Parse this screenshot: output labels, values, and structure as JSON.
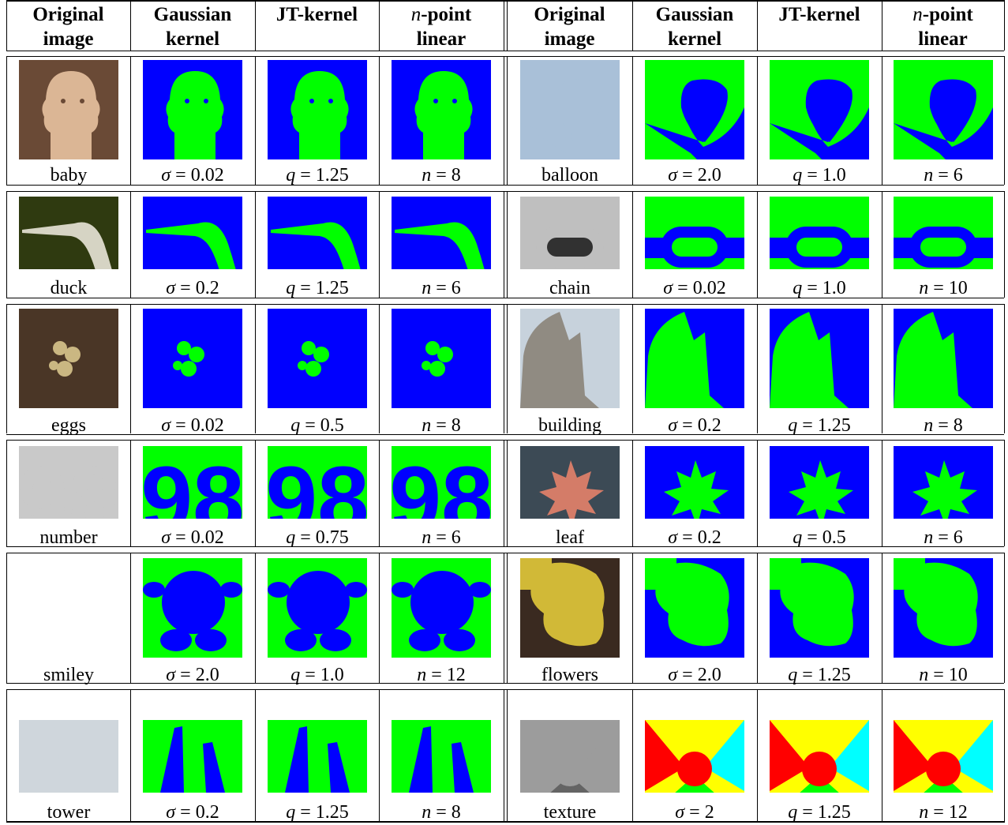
{
  "columns": [
    {
      "line1": "Original",
      "line2": "image"
    },
    {
      "line1": "Gaussian",
      "line2": "kernel"
    },
    {
      "line1": "JT-kernel",
      "line2": ""
    },
    {
      "prefix": "n",
      "line1": "-point",
      "line2": "linear"
    },
    {
      "line1": "Original",
      "line2": "image"
    },
    {
      "line1": "Gaussian",
      "line2": "kernel"
    },
    {
      "line1": "JT-kernel",
      "line2": ""
    },
    {
      "prefix": "n",
      "line1": "-point",
      "line2": "linear"
    }
  ],
  "rows": [
    {
      "left": {
        "name": "baby",
        "gaussian": {
          "var": "σ",
          "value": "0.02"
        },
        "jt": {
          "var": "q",
          "value": "1.25"
        },
        "npoint": {
          "var": "n",
          "value": "8"
        }
      },
      "right": {
        "name": "balloon",
        "gaussian": {
          "var": "σ",
          "value": "2.0"
        },
        "jt": {
          "var": "q",
          "value": "1.0"
        },
        "npoint": {
          "var": "n",
          "value": "6"
        }
      }
    },
    {
      "left": {
        "name": "duck",
        "gaussian": {
          "var": "σ",
          "value": "0.2"
        },
        "jt": {
          "var": "q",
          "value": "1.25"
        },
        "npoint": {
          "var": "n",
          "value": "6"
        }
      },
      "right": {
        "name": "chain",
        "gaussian": {
          "var": "σ",
          "value": "0.02"
        },
        "jt": {
          "var": "q",
          "value": "1.0"
        },
        "npoint": {
          "var": "n",
          "value": "10"
        }
      }
    },
    {
      "left": {
        "name": "eggs",
        "gaussian": {
          "var": "σ",
          "value": "0.02"
        },
        "jt": {
          "var": "q",
          "value": "0.5"
        },
        "npoint": {
          "var": "n",
          "value": "8"
        }
      },
      "right": {
        "name": "building",
        "gaussian": {
          "var": "σ",
          "value": "0.2"
        },
        "jt": {
          "var": "q",
          "value": "1.25"
        },
        "npoint": {
          "var": "n",
          "value": "8"
        }
      }
    },
    {
      "left": {
        "name": "number",
        "gaussian": {
          "var": "σ",
          "value": "0.02"
        },
        "jt": {
          "var": "q",
          "value": "0.75"
        },
        "npoint": {
          "var": "n",
          "value": "6"
        }
      },
      "right": {
        "name": "leaf",
        "gaussian": {
          "var": "σ",
          "value": "0.2"
        },
        "jt": {
          "var": "q",
          "value": "0.5"
        },
        "npoint": {
          "var": "n",
          "value": "6"
        }
      }
    },
    {
      "left": {
        "name": "smiley",
        "gaussian": {
          "var": "σ",
          "value": "2.0"
        },
        "jt": {
          "var": "q",
          "value": "1.0"
        },
        "npoint": {
          "var": "n",
          "value": "12"
        }
      },
      "right": {
        "name": "flowers",
        "gaussian": {
          "var": "σ",
          "value": "2.0"
        },
        "jt": {
          "var": "q",
          "value": "1.25"
        },
        "npoint": {
          "var": "n",
          "value": "10"
        }
      }
    },
    {
      "left": {
        "name": "tower",
        "gaussian": {
          "var": "σ",
          "value": "0.2"
        },
        "jt": {
          "var": "q",
          "value": "1.25"
        },
        "npoint": {
          "var": "n",
          "value": "8"
        }
      },
      "right": {
        "name": "texture",
        "gaussian": {
          "var": "σ",
          "value": "2"
        },
        "jt": {
          "var": "q",
          "value": "1.25"
        },
        "npoint": {
          "var": "n",
          "value": "12"
        }
      }
    }
  ],
  "segmentation_colors": {
    "class_a": "#0000ff",
    "class_b": "#00ff00",
    "class_c": "#ff0000",
    "class_d": "#ffff00",
    "class_e": "#00ffff"
  }
}
